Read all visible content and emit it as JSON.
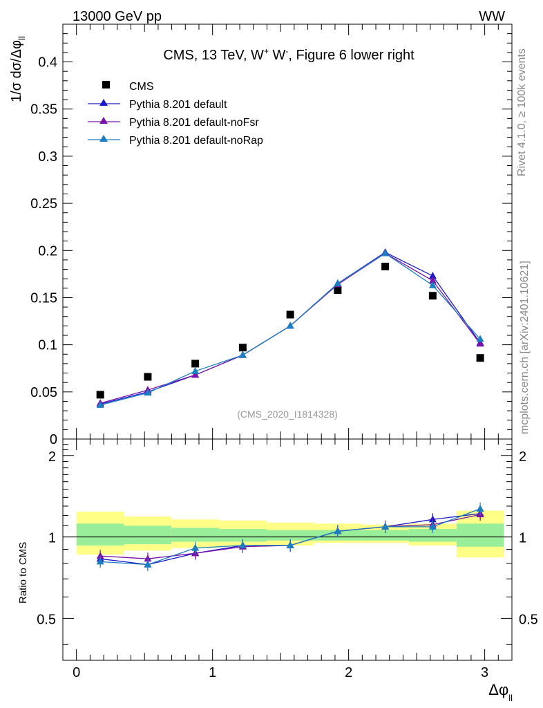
{
  "header": {
    "left": "13000 GeV pp",
    "right": "WW"
  },
  "side_labels": {
    "rivet": "Rivet 4.1.0, ≥ 100k events",
    "mcplots": "mcplots.cern.ch [arXiv:2401.10621]"
  },
  "analysis_id": "(CMS_2020_I1814328)",
  "colors": {
    "cms": "#000000",
    "default": "#1a1acc",
    "noFsr": "#7a13a8",
    "noRap": "#1a7ec0",
    "band_outer": "#ffff88",
    "band_inner": "#99ee99"
  },
  "chart_data": [
    {
      "type": "scatter",
      "panel": "main",
      "title": "CMS, 13 TeV, W⁺ W⁻, Figure 6 lower right",
      "title_parts": {
        "pre": "CMS, 13 TeV, W",
        "sup1": "+",
        "mid": " W",
        "sup2": "-",
        "post": ", Figure 6 lower right"
      },
      "ylabel": "1/σ dσ/Δφ",
      "ylabel_sub": "ll",
      "xlim": [
        -0.1,
        3.2
      ],
      "ylim": [
        0,
        0.44
      ],
      "yticks": [
        0.05,
        0.1,
        0.15,
        0.2,
        0.25,
        0.3,
        0.35,
        0.4
      ],
      "ytick_labels": [
        "0.05",
        "0.1",
        "0.15",
        "0.2",
        "0.25",
        "0.3",
        "0.35",
        "0.4"
      ],
      "y_bottom_label": "0",
      "x": [
        0.175,
        0.524,
        0.873,
        1.222,
        1.571,
        1.92,
        2.269,
        2.618,
        2.967
      ],
      "bin_edges": [
        0,
        0.349,
        0.698,
        1.047,
        1.396,
        1.745,
        2.094,
        2.443,
        2.793,
        3.1416
      ],
      "legend": [
        "CMS",
        "Pythia 8.201 default",
        "Pythia 8.201 default-noFsr",
        "Pythia 8.201 default-noRap"
      ],
      "series": [
        {
          "name": "CMS",
          "key": "cms",
          "values": [
            0.047,
            0.066,
            0.08,
            0.097,
            0.132,
            0.158,
            0.183,
            0.152,
            0.086
          ]
        },
        {
          "name": "Pythia 8.201 default",
          "key": "default",
          "values": [
            0.037,
            0.05,
            0.068,
            0.089,
            0.12,
            0.165,
            0.198,
            0.173,
            0.102
          ]
        },
        {
          "name": "Pythia 8.201 default-noFsr",
          "key": "noFsr",
          "values": [
            0.038,
            0.052,
            0.068,
            0.089,
            0.12,
            0.164,
            0.197,
            0.168,
            0.101
          ]
        },
        {
          "name": "Pythia 8.201 default-noRap",
          "key": "noRap",
          "values": [
            0.036,
            0.049,
            0.072,
            0.089,
            0.12,
            0.165,
            0.197,
            0.163,
            0.106
          ]
        }
      ]
    },
    {
      "type": "line",
      "panel": "ratio",
      "ylabel": "Ratio to CMS",
      "xlabel": "Δφ",
      "xlabel_sub": "ll",
      "xlim": [
        -0.1,
        3.2
      ],
      "ylim": [
        0.35,
        2.3
      ],
      "yscale": "log",
      "yticks": [
        0.5,
        1,
        2
      ],
      "ytick_labels": [
        "0.5",
        "1",
        "2"
      ],
      "xticks": [
        0,
        1,
        2,
        3
      ],
      "xtick_labels": [
        "0",
        "1",
        "2",
        "3"
      ],
      "x": [
        0.175,
        0.524,
        0.873,
        1.222,
        1.571,
        1.92,
        2.269,
        2.618,
        2.967
      ],
      "band_outer": [
        [
          0.86,
          1.24
        ],
        [
          0.89,
          1.19
        ],
        [
          0.91,
          1.16
        ],
        [
          0.92,
          1.15
        ],
        [
          0.93,
          1.13
        ],
        [
          0.95,
          1.12
        ],
        [
          0.95,
          1.11
        ],
        [
          0.93,
          1.12
        ],
        [
          0.84,
          1.25
        ]
      ],
      "band_inner": [
        [
          0.93,
          1.12
        ],
        [
          0.94,
          1.1
        ],
        [
          0.96,
          1.08
        ],
        [
          0.96,
          1.07
        ],
        [
          0.97,
          1.06
        ],
        [
          0.97,
          1.06
        ],
        [
          0.97,
          1.06
        ],
        [
          0.96,
          1.07
        ],
        [
          0.92,
          1.12
        ]
      ],
      "series": [
        {
          "name": "Pythia 8.201 default",
          "key": "default",
          "values": [
            0.83,
            0.79,
            0.87,
            0.93,
            0.93,
            1.05,
            1.09,
            1.16,
            1.22
          ]
        },
        {
          "name": "Pythia 8.201 default-noFsr",
          "key": "noFsr",
          "values": [
            0.85,
            0.83,
            0.87,
            0.92,
            0.93,
            1.05,
            1.09,
            1.11,
            1.21
          ]
        },
        {
          "name": "Pythia 8.201 default-noRap",
          "key": "noRap",
          "values": [
            0.81,
            0.79,
            0.91,
            0.93,
            0.93,
            1.05,
            1.09,
            1.09,
            1.27
          ]
        }
      ]
    }
  ]
}
